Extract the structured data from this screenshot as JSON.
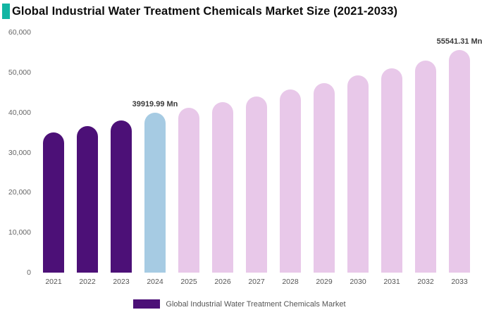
{
  "chart_data": {
    "type": "bar",
    "title": "Global Industrial Water Treatment Chemicals Market Size (2021-2033)",
    "categories": [
      "2021",
      "2022",
      "2023",
      "2024",
      "2025",
      "2026",
      "2027",
      "2028",
      "2029",
      "2030",
      "2031",
      "2032",
      "2033"
    ],
    "values": [
      35000,
      36600,
      38000,
      39919.99,
      41200,
      42500,
      44000,
      45700,
      47400,
      49200,
      51000,
      53000,
      55541.31
    ],
    "ylim": [
      0,
      60000
    ],
    "y_ticks": [
      "0",
      "10,000",
      "20,000",
      "30,000",
      "40,000",
      "50,000",
      "60,000"
    ],
    "xlabel": "",
    "ylabel": "",
    "grid": false,
    "legend_position": "bottom",
    "legend": "Global Industrial Water Treatment Chemicals Market",
    "annotations": [
      {
        "index": 3,
        "text": "39919.99 Mn"
      },
      {
        "index": 12,
        "text": "55541.31 Mn"
      }
    ],
    "bar_color_keys": [
      "historical",
      "historical",
      "historical",
      "current",
      "forecast",
      "forecast",
      "forecast",
      "forecast",
      "forecast",
      "forecast",
      "forecast",
      "forecast",
      "forecast"
    ],
    "colors": {
      "historical": "#4c1077",
      "current": "#a6cbe3",
      "forecast": "#e8c8e9",
      "accent": "#12b5a3",
      "legend_swatch": "#4c1077"
    }
  }
}
